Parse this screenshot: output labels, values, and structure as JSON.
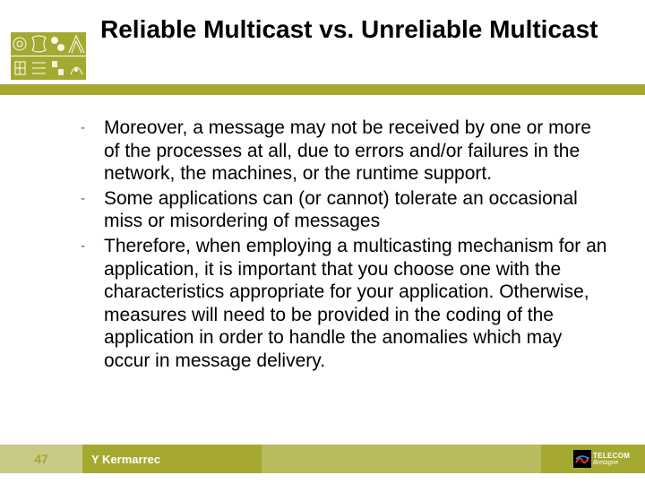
{
  "colors": {
    "olive": "#a5a930",
    "olive_mid": "#b9bb5c",
    "olive_light": "#c9ca86",
    "white": "#ffffff",
    "black": "#000000",
    "title_color": "#000000",
    "dash_color": "#555555",
    "logo_text": "#ffffff"
  },
  "fonts": {
    "title_size_pt": 28,
    "body_size_pt": 21,
    "footer_number_size_pt": 14,
    "footer_author_size_pt": 13
  },
  "title": "Reliable Multicast vs. Unreliable Multicast",
  "bullets": [
    "Moreover, a message may not be received by one or more of the processes at all, due to errors and/or failures in the network, the machines, or the runtime support.",
    "Some applications can (or cannot) tolerate an occasional miss or misordering of messages",
    "Therefore, when employing a multicasting mechanism for an application, it is important that you choose one with the characteristics appropriate for your application. Otherwise, measures will need to be provided in the coding of the application in order to handle the anomalies which may occur in message delivery."
  ],
  "slide_number": "47",
  "author": "Y Kermarrec",
  "logo": {
    "line1": "TELECOM",
    "line2": "Bretagne"
  }
}
